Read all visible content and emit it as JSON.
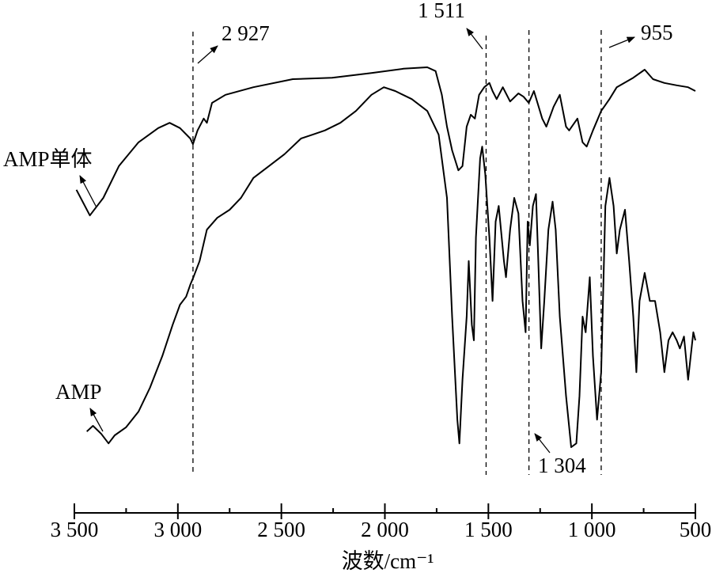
{
  "chart_data": {
    "type": "line",
    "xlabel": "波数/cm⁻¹",
    "xlim": [
      3500,
      500
    ],
    "ylim": [
      0,
      100
    ],
    "xticks": [
      {
        "value": 3500,
        "label": "3 500"
      },
      {
        "value": 3000,
        "label": "3 000"
      },
      {
        "value": 2500,
        "label": "2 500"
      },
      {
        "value": 2000,
        "label": "2 000"
      },
      {
        "value": 1500,
        "label": "1 500"
      },
      {
        "value": 1000,
        "label": "1 000"
      },
      500
    ],
    "xticks_minor": [
      3250,
      2750,
      2250,
      1750,
      1250,
      750
    ],
    "vlines": [
      {
        "value": 2927,
        "label": "2 927"
      },
      {
        "value": 1511,
        "label": "1 511"
      },
      {
        "value": 1304,
        "label": "1 304"
      },
      {
        "value": 955,
        "label": "955"
      }
    ],
    "series": [
      {
        "name": "AMP单体",
        "color": "#000000",
        "x": [
          3490,
          3425,
          3360,
          3285,
          3190,
          3095,
          3040,
          2990,
          2940,
          2927,
          2905,
          2875,
          2860,
          2835,
          2770,
          2635,
          2445,
          2255,
          2065,
          1910,
          1795,
          1755,
          1725,
          1700,
          1675,
          1645,
          1625,
          1605,
          1585,
          1565,
          1545,
          1520,
          1495,
          1480,
          1460,
          1430,
          1395,
          1355,
          1330,
          1305,
          1280,
          1240,
          1220,
          1185,
          1155,
          1125,
          1110,
          1070,
          1045,
          1025,
          995,
          955,
          915,
          880,
          800,
          745,
          705,
          650,
          590,
          535,
          500
        ],
        "values": [
          66.7,
          61.3,
          65,
          71.7,
          76.7,
          79.7,
          80.8,
          79.7,
          77.5,
          76.3,
          79.2,
          81.7,
          80.8,
          85,
          86.7,
          88.3,
          90,
          90.3,
          91.3,
          92.2,
          92.5,
          91.7,
          86.7,
          80,
          75,
          70.8,
          71.7,
          80,
          82.5,
          81.7,
          86.7,
          88.3,
          89.2,
          87.5,
          85.8,
          88.3,
          85.3,
          87,
          86.3,
          85,
          87.5,
          81.7,
          80,
          84.2,
          86.7,
          80,
          79.2,
          81.7,
          76.7,
          75.8,
          79.2,
          83.3,
          85.8,
          88.3,
          90.3,
          92,
          90,
          89.2,
          88.7,
          88.3,
          87.5
        ]
      },
      {
        "name": "AMP",
        "color": "#000000",
        "x": [
          3440,
          3410,
          3370,
          3335,
          3305,
          3250,
          3190,
          3135,
          3075,
          3025,
          2990,
          2960,
          2940,
          2925,
          2895,
          2860,
          2810,
          2750,
          2695,
          2635,
          2560,
          2485,
          2405,
          2350,
          2290,
          2215,
          2140,
          2065,
          2005,
          1950,
          1870,
          1795,
          1740,
          1700,
          1675,
          1650,
          1640,
          1625,
          1605,
          1595,
          1580,
          1570,
          1560,
          1540,
          1530,
          1515,
          1495,
          1480,
          1465,
          1450,
          1425,
          1415,
          1395,
          1375,
          1355,
          1335,
          1320,
          1310,
          1300,
          1285,
          1270,
          1260,
          1245,
          1230,
          1210,
          1190,
          1175,
          1155,
          1125,
          1100,
          1075,
          1060,
          1045,
          1030,
          1010,
          995,
          975,
          955,
          935,
          915,
          895,
          880,
          865,
          840,
          820,
          800,
          785,
          770,
          745,
          720,
          695,
          670,
          650,
          630,
          610,
          590,
          575,
          555,
          535,
          510,
          500
        ],
        "values": [
          15.8,
          17,
          15.3,
          13.3,
          15,
          16.7,
          20,
          25,
          31.7,
          38.3,
          42.5,
          44.2,
          46.7,
          48.3,
          51.7,
          58.3,
          60.8,
          62.5,
          65,
          69.2,
          71.7,
          74.2,
          77.5,
          78.3,
          79.2,
          80.8,
          83.3,
          86.7,
          88.3,
          87.5,
          85.8,
          83.3,
          78.3,
          65,
          40,
          18.3,
          13.3,
          26.7,
          40,
          51.7,
          38.3,
          35,
          56.7,
          73.3,
          75.8,
          70,
          56.7,
          43.3,
          60,
          63.3,
          51.7,
          48.3,
          58.3,
          65,
          61.7,
          43.3,
          36.7,
          60,
          55,
          63.3,
          65.8,
          53.3,
          33.3,
          43.3,
          58.3,
          64.2,
          58.3,
          40,
          23.3,
          12.5,
          13.3,
          23.3,
          40,
          36.7,
          48.3,
          31.7,
          18.3,
          28.3,
          63.3,
          69.2,
          63.3,
          53.3,
          58.3,
          62.5,
          51.7,
          40,
          28.3,
          43.3,
          49.2,
          43.3,
          43.3,
          36.7,
          28.3,
          35,
          36.7,
          35,
          33.3,
          35.8,
          26.7,
          36.7,
          35
        ]
      }
    ]
  }
}
